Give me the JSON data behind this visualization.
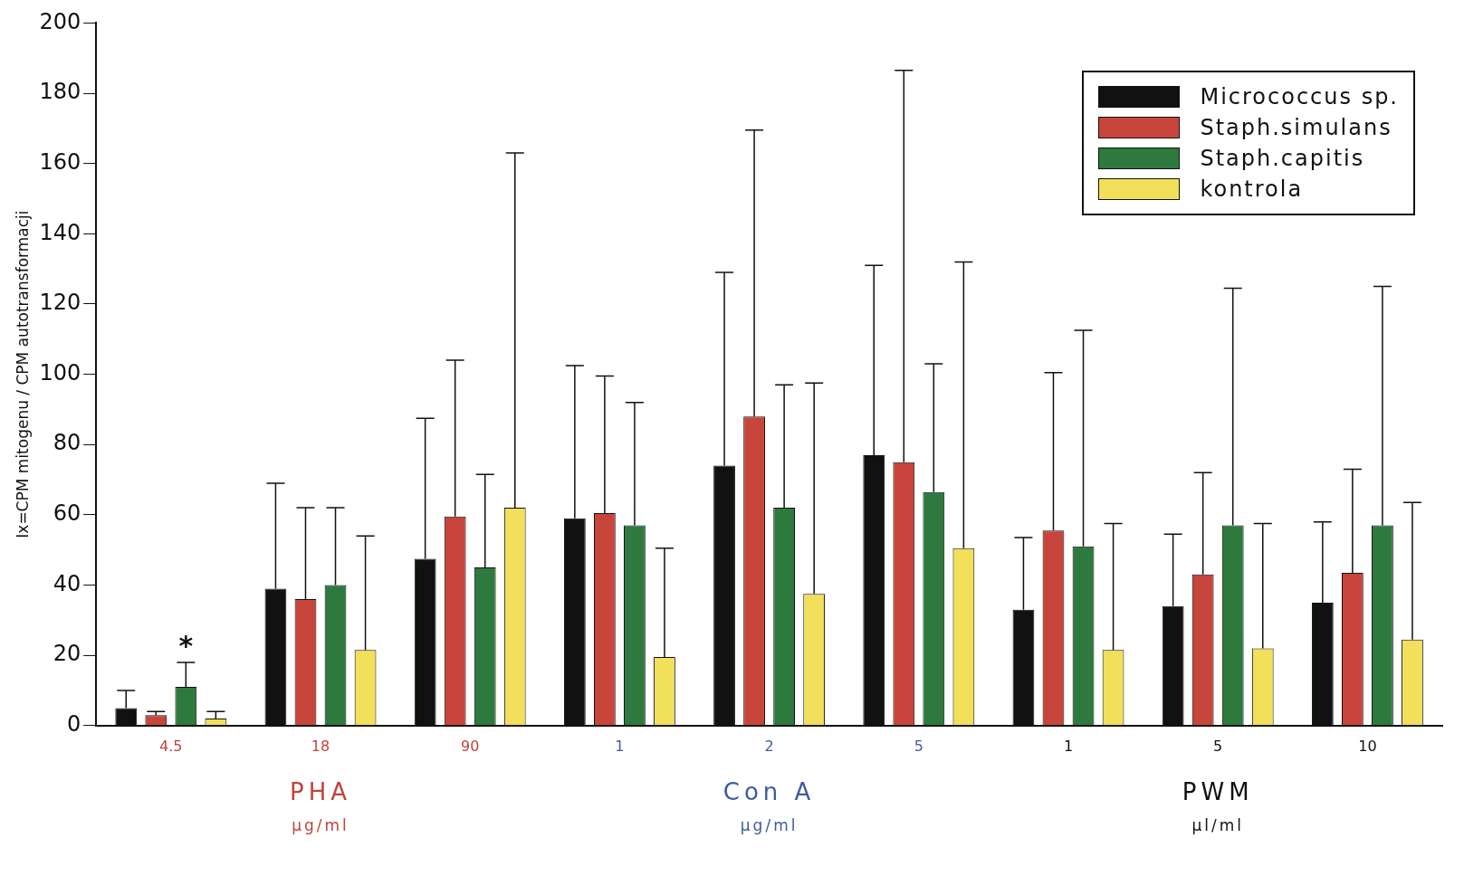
{
  "chart_data": {
    "type": "bar",
    "ylabel": "Ix=CPM mitogenu / CPM autotransformacji",
    "categories": [
      "4.5",
      "18",
      "90",
      "1",
      "2",
      "5",
      "1",
      "5",
      "10"
    ],
    "ylim": [
      0,
      200
    ],
    "yticks": [
      0,
      20,
      40,
      60,
      80,
      100,
      120,
      140,
      160,
      180,
      200
    ],
    "grid": false,
    "legend": "top right",
    "series": [
      {
        "name": "Micrococcus sp.",
        "color": "#111111",
        "values": [
          5,
          39,
          47.5,
          59,
          74,
          77,
          33,
          34,
          35
        ],
        "errors": [
          [
            5,
            10
          ],
          [
            39,
            69
          ],
          [
            47.5,
            87.5
          ],
          [
            59,
            102.5
          ],
          [
            74,
            129
          ],
          [
            77,
            131
          ],
          [
            33,
            53.5
          ],
          [
            34,
            54.5
          ],
          [
            35,
            58
          ]
        ]
      },
      {
        "name": "Staph.simulans",
        "color": "#c8453c",
        "values": [
          3,
          36,
          59.5,
          60.5,
          88,
          75,
          55.5,
          43,
          43.5
        ],
        "errors": [
          [
            3,
            4
          ],
          [
            36,
            62
          ],
          [
            59.5,
            104
          ],
          [
            60.5,
            99.5
          ],
          [
            88,
            169.5
          ],
          [
            75,
            186.5
          ],
          [
            55.5,
            100.5
          ],
          [
            43,
            72
          ],
          [
            43.5,
            73
          ]
        ]
      },
      {
        "name": "Staph.capitis",
        "color": "#2e7a3e",
        "values": [
          11,
          40,
          45,
          57,
          62,
          66.5,
          51,
          57,
          57
        ],
        "errors": [
          [
            11,
            18
          ],
          [
            40,
            62
          ],
          [
            45,
            71.5
          ],
          [
            57,
            92
          ],
          [
            62,
            97
          ],
          [
            66.5,
            103
          ],
          [
            51,
            112.5
          ],
          [
            57,
            124.5
          ],
          [
            57,
            125
          ]
        ]
      },
      {
        "name": "kontrola",
        "color": "#f2df5a",
        "values": [
          2,
          21.5,
          62,
          19.5,
          37.5,
          50.5,
          21.5,
          22,
          24.5
        ],
        "errors": [
          [
            2,
            4
          ],
          [
            21.5,
            54
          ],
          [
            62,
            163
          ],
          [
            19.5,
            50.5
          ],
          [
            37.5,
            97.5
          ],
          [
            50.5,
            132
          ],
          [
            21.5,
            57.5
          ],
          [
            22,
            57.5
          ],
          [
            24.5,
            63.5
          ]
        ]
      }
    ],
    "annotations": [
      "*",
      "PHA",
      "μg/ml",
      "Con A",
      "μg/ml",
      "PWM",
      "μl/ml"
    ]
  }
}
